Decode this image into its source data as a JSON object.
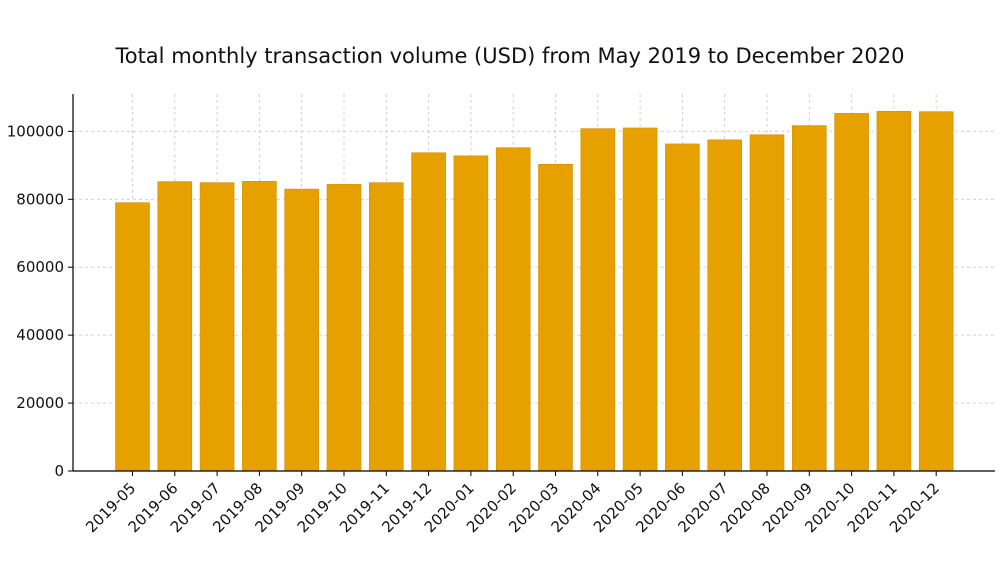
{
  "chart_data": {
    "type": "bar",
    "title": "Total monthly transaction volume (USD) from May 2019 to December 2020",
    "xlabel": "",
    "ylabel": ")",
    "categories": [
      "2019-05",
      "2019-06",
      "2019-07",
      "2019-08",
      "2019-09",
      "2019-10",
      "2019-11",
      "2019-12",
      "2020-01",
      "2020-02",
      "2020-03",
      "2020-04",
      "2020-05",
      "2020-06",
      "2020-07",
      "2020-08",
      "2020-09",
      "2020-10",
      "2020-11",
      "2020-12"
    ],
    "values": [
      79000,
      85200,
      84900,
      85300,
      83000,
      84400,
      84900,
      93700,
      92800,
      95200,
      90300,
      100800,
      101000,
      96300,
      97500,
      99000,
      101700,
      105300,
      105900,
      105800
    ],
    "ylim": [
      0,
      111000
    ],
    "yticks": [
      0,
      20000,
      40000,
      60000,
      80000,
      100000
    ],
    "ytick_labels": [
      "0",
      "20000",
      "40000",
      "60000",
      "80000",
      "100000"
    ],
    "grid": true,
    "bar_color": "#E6A000",
    "bar_edge_color": "#D19100",
    "grid_color": "#CCCCCC",
    "axis_color": "#000000"
  }
}
